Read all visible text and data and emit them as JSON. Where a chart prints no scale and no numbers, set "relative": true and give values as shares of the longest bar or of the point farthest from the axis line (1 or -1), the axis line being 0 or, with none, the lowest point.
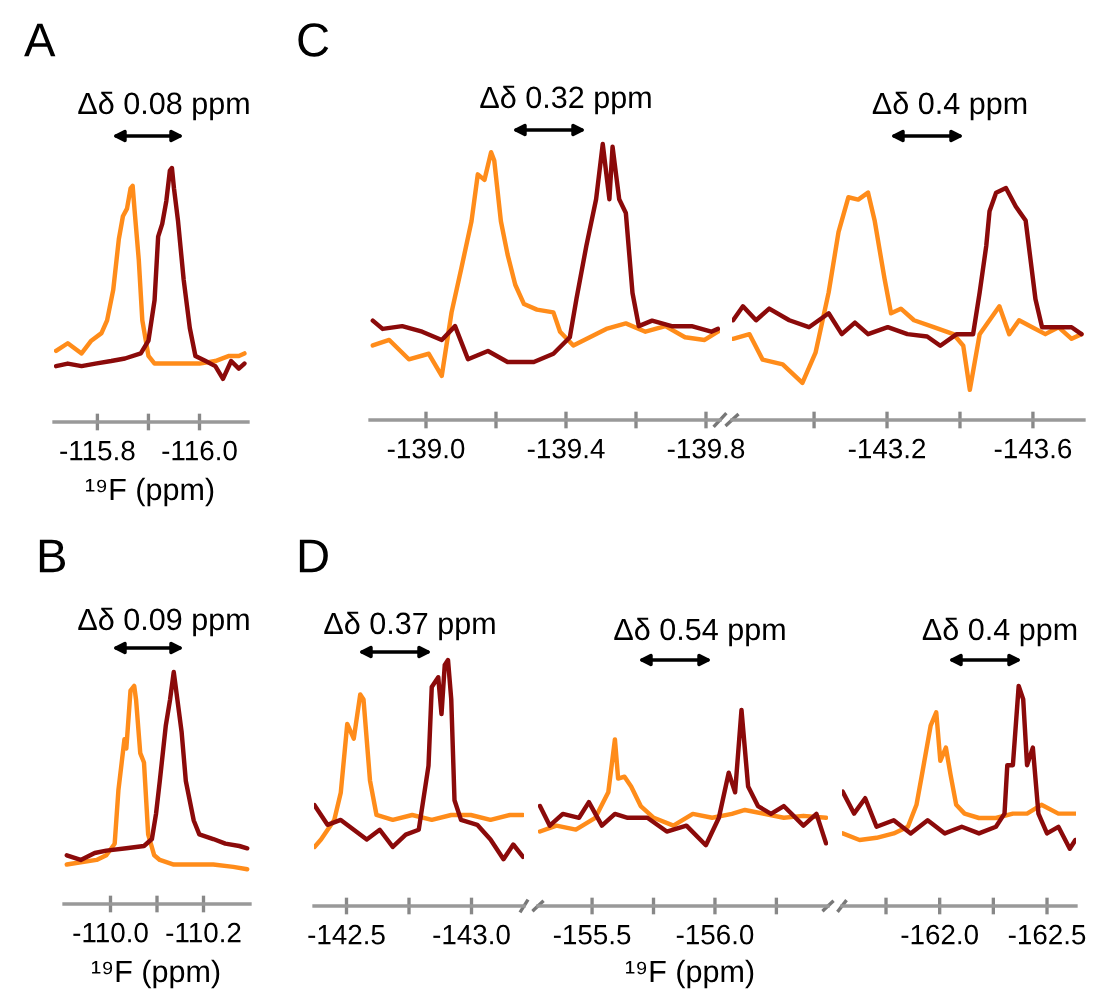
{
  "chart_data": [
    {
      "type": "line",
      "title": "A",
      "xlabel": "¹⁹F (ppm)",
      "annotations": [
        "Δδ 0.08 ppm"
      ],
      "relative": true,
      "tick_labels": "x",
      "xlim": [
        -115.715,
        -116.095
      ],
      "xticks": [
        -115.8,
        {
          "value": -115.9,
          "label": null
        },
        {
          "value": -116.0,
          "label": "-116.0"
        }
      ],
      "series": [
        {
          "color": "#ff8c1a",
          "x": [
            -115.719,
            -115.742,
            -115.769,
            -115.788,
            -115.808,
            -115.819,
            -115.831,
            -115.842,
            -115.85,
            -115.858,
            -115.865,
            -115.869,
            -115.873,
            -115.881,
            -115.888,
            -115.9,
            -115.912,
            -115.931,
            -115.954,
            -115.981,
            -116.0,
            -116.031,
            -116.058,
            -116.077,
            -116.088
          ],
          "values": [
            0.28,
            0.31,
            0.27,
            0.32,
            0.35,
            0.4,
            0.52,
            0.72,
            0.81,
            0.84,
            0.92,
            0.93,
            0.83,
            0.64,
            0.4,
            0.26,
            0.23,
            0.23,
            0.23,
            0.23,
            0.23,
            0.24,
            0.26,
            0.26,
            0.27
          ]
        },
        {
          "color": "#8b0a0a",
          "x": [
            -115.719,
            -115.742,
            -115.769,
            -115.796,
            -115.827,
            -115.854,
            -115.885,
            -115.9,
            -115.912,
            -115.919,
            -115.927,
            -115.935,
            -115.942,
            -115.946,
            -115.95,
            -115.958,
            -115.969,
            -115.981,
            -115.992,
            -116.012,
            -116.031,
            -116.046,
            -116.062,
            -116.077,
            -116.088
          ],
          "values": [
            0.22,
            0.23,
            0.22,
            0.23,
            0.24,
            0.25,
            0.27,
            0.32,
            0.48,
            0.73,
            0.78,
            0.87,
            0.99,
            1,
            0.92,
            0.79,
            0.56,
            0.37,
            0.26,
            0.24,
            0.22,
            0.17,
            0.24,
            0.21,
            0.23
          ]
        }
      ]
    },
    {
      "type": "line",
      "title": "C",
      "annotations": [
        "Δδ 0.32 ppm"
      ],
      "relative": true,
      "tick_labels": "x",
      "xlim": [
        -138.84,
        -139.84
      ],
      "xticks": [
        {
          "value": -139.0,
          "label": "-139.0"
        },
        {
          "value": -139.2,
          "label": null
        },
        -139.4,
        {
          "value": -139.6,
          "label": null
        },
        -139.8
      ],
      "series": [
        {
          "color": "#ff8c1a",
          "x": [
            -138.848,
            -138.895,
            -138.951,
            -139.008,
            -139.045,
            -139.073,
            -139.101,
            -139.13,
            -139.148,
            -139.167,
            -139.186,
            -139.195,
            -139.214,
            -139.233,
            -139.255,
            -139.28,
            -139.317,
            -139.364,
            -139.383,
            -139.421,
            -139.468,
            -139.515,
            -139.571,
            -139.627,
            -139.684,
            -139.74,
            -139.796,
            -139.834
          ],
          "values": [
            0.27,
            0.29,
            0.22,
            0.24,
            0.16,
            0.39,
            0.55,
            0.72,
            0.89,
            0.87,
            0.97,
            0.94,
            0.72,
            0.6,
            0.49,
            0.42,
            0.4,
            0.39,
            0.32,
            0.27,
            0.3,
            0.33,
            0.35,
            0.32,
            0.34,
            0.3,
            0.29,
            0.32
          ]
        },
        {
          "color": "#8b0a0a",
          "x": [
            -138.848,
            -138.876,
            -138.932,
            -138.989,
            -139.045,
            -139.083,
            -139.12,
            -139.177,
            -139.233,
            -139.308,
            -139.364,
            -139.411,
            -139.43,
            -139.458,
            -139.486,
            -139.505,
            -139.524,
            -139.533,
            -139.552,
            -139.571,
            -139.59,
            -139.608,
            -139.646,
            -139.702,
            -139.759,
            -139.815,
            -139.834
          ],
          "values": [
            0.36,
            0.33,
            0.34,
            0.32,
            0.29,
            0.34,
            0.22,
            0.25,
            0.21,
            0.21,
            0.24,
            0.3,
            0.44,
            0.63,
            0.8,
            1,
            0.8,
            0.99,
            0.8,
            0.75,
            0.46,
            0.34,
            0.36,
            0.34,
            0.34,
            0.32,
            0.33
          ]
        }
      ]
    },
    {
      "type": "line",
      "annotations": [
        "Δδ 0.4 ppm"
      ],
      "relative": true,
      "tick_labels": "x",
      "xlim": [
        -142.775,
        -143.74
      ],
      "xticks": [
        {
          "value": -143.0,
          "label": null
        },
        -143.2,
        {
          "value": -143.4,
          "label": null
        },
        -143.6
      ],
      "series": [
        {
          "color": "#ff8c1a",
          "x": [
            -142.778,
            -142.823,
            -142.859,
            -142.914,
            -142.968,
            -143.004,
            -143.04,
            -143.067,
            -143.094,
            -143.121,
            -143.148,
            -143.166,
            -143.193,
            -143.211,
            -143.238,
            -143.274,
            -143.328,
            -143.382,
            -143.409,
            -143.427,
            -143.454,
            -143.481,
            -143.508,
            -143.535,
            -143.562,
            -143.598,
            -143.634,
            -143.67,
            -143.706,
            -143.733
          ],
          "values": [
            0.35,
            0.37,
            0.26,
            0.24,
            0.16,
            0.29,
            0.55,
            0.81,
            0.96,
            0.95,
            0.98,
            0.86,
            0.61,
            0.46,
            0.48,
            0.43,
            0.4,
            0.37,
            0.32,
            0.13,
            0.37,
            0.43,
            0.49,
            0.37,
            0.43,
            0.4,
            0.37,
            0.4,
            0.35,
            0.37
          ]
        },
        {
          "color": "#8b0a0a",
          "x": [
            -142.778,
            -142.805,
            -142.841,
            -142.877,
            -142.932,
            -142.986,
            -143.04,
            -143.076,
            -143.112,
            -143.148,
            -143.202,
            -143.256,
            -143.31,
            -143.346,
            -143.391,
            -143.436,
            -143.454,
            -143.472,
            -143.481,
            -143.499,
            -143.526,
            -143.553,
            -143.58,
            -143.607,
            -143.625,
            -143.661,
            -143.706,
            -143.733
          ],
          "values": [
            0.43,
            0.49,
            0.43,
            0.48,
            0.43,
            0.4,
            0.46,
            0.37,
            0.42,
            0.37,
            0.4,
            0.37,
            0.36,
            0.32,
            0.37,
            0.37,
            0.55,
            0.75,
            0.9,
            0.98,
            1,
            0.92,
            0.86,
            0.52,
            0.4,
            0.4,
            0.4,
            0.37
          ]
        }
      ]
    },
    {
      "type": "line",
      "title": "B",
      "xlabel": "¹⁹F (ppm)",
      "annotations": [
        "Δδ 0.09 ppm"
      ],
      "relative": true,
      "tick_labels": "x",
      "xlim": [
        -109.9,
        -110.3
      ],
      "xticks": [
        {
          "value": -110.0,
          "label": "-110.0"
        },
        {
          "value": -110.1,
          "label": null
        },
        -110.2
      ],
      "series": [
        {
          "color": "#ff8c1a",
          "x": [
            -109.906,
            -109.936,
            -109.97,
            -109.991,
            -110.009,
            -110.017,
            -110.03,
            -110.034,
            -110.043,
            -110.051,
            -110.055,
            -110.064,
            -110.072,
            -110.081,
            -110.094,
            -110.106,
            -110.136,
            -110.179,
            -110.221,
            -110.264,
            -110.294
          ],
          "values": [
            0.17,
            0.18,
            0.19,
            0.21,
            0.26,
            0.49,
            0.71,
            0.67,
            0.92,
            0.94,
            0.88,
            0.65,
            0.61,
            0.3,
            0.21,
            0.19,
            0.17,
            0.17,
            0.17,
            0.16,
            0.15
          ]
        },
        {
          "color": "#8b0a0a",
          "x": [
            -109.906,
            -109.936,
            -109.966,
            -109.991,
            -110.034,
            -110.072,
            -110.089,
            -110.098,
            -110.106,
            -110.119,
            -110.128,
            -110.136,
            -110.14,
            -110.153,
            -110.162,
            -110.179,
            -110.191,
            -110.221,
            -110.247,
            -110.277,
            -110.294
          ],
          "values": [
            0.21,
            0.19,
            0.22,
            0.23,
            0.24,
            0.25,
            0.28,
            0.39,
            0.53,
            0.77,
            0.88,
            1,
            0.94,
            0.74,
            0.53,
            0.36,
            0.3,
            0.28,
            0.26,
            0.25,
            0.24
          ]
        }
      ]
    },
    {
      "type": "line",
      "title": "D",
      "annotations": [
        "Δδ 0.37 ppm"
      ],
      "relative": true,
      "tick_labels": "x",
      "xlim": [
        -142.37,
        -143.21
      ],
      "xticks": [
        -142.5,
        {
          "value": -142.75,
          "label": null
        },
        {
          "value": -143.0,
          "label": "-143.0"
        }
      ],
      "series": [
        {
          "color": "#ff8c1a",
          "x": [
            -142.372,
            -142.398,
            -142.451,
            -142.477,
            -142.503,
            -142.529,
            -142.555,
            -142.568,
            -142.594,
            -142.62,
            -142.685,
            -142.763,
            -142.841,
            -142.919,
            -142.997,
            -143.076,
            -143.154,
            -143.206
          ],
          "values": [
            0.24,
            0.27,
            0.35,
            0.46,
            0.74,
            0.68,
            0.86,
            0.84,
            0.51,
            0.37,
            0.35,
            0.37,
            0.35,
            0.37,
            0.37,
            0.35,
            0.37,
            0.37
          ]
        },
        {
          "color": "#8b0a0a",
          "x": [
            -142.372,
            -142.424,
            -142.477,
            -142.529,
            -142.581,
            -142.633,
            -142.685,
            -142.737,
            -142.789,
            -142.828,
            -142.841,
            -142.867,
            -142.88,
            -142.893,
            -142.906,
            -142.919,
            -142.932,
            -142.958,
            -143.023,
            -143.076,
            -143.128,
            -143.167,
            -143.206
          ],
          "values": [
            0.41,
            0.33,
            0.35,
            0.31,
            0.27,
            0.31,
            0.24,
            0.29,
            0.31,
            0.57,
            0.89,
            0.93,
            0.78,
            0.98,
            1,
            0.84,
            0.43,
            0.35,
            0.33,
            0.27,
            0.19,
            0.25,
            0.2
          ]
        }
      ]
    },
    {
      "type": "line",
      "xlabel": "¹⁹F (ppm)",
      "annotations": [
        "Δδ 0.54 ppm"
      ],
      "relative": true,
      "tick_labels": "x",
      "xlim": [
        -155.28,
        -156.46
      ],
      "xticks": [
        -155.5,
        {
          "value": -155.75,
          "label": null
        },
        {
          "value": -156.0,
          "label": "-156.0"
        },
        {
          "value": -156.25,
          "label": null
        }
      ],
      "series": [
        {
          "color": "#ff8c1a",
          "x": [
            -155.288,
            -155.355,
            -155.434,
            -155.513,
            -155.566,
            -155.593,
            -155.606,
            -155.632,
            -155.659,
            -155.698,
            -155.751,
            -155.831,
            -155.91,
            -155.989,
            -156.069,
            -156.122,
            -156.201,
            -156.28,
            -156.36,
            -156.452
          ],
          "values": [
            0.38,
            0.41,
            0.39,
            0.45,
            0.58,
            0.85,
            0.65,
            0.66,
            0.61,
            0.51,
            0.45,
            0.41,
            0.47,
            0.45,
            0.47,
            0.49,
            0.47,
            0.45,
            0.46,
            0.45
          ]
        },
        {
          "color": "#8b0a0a",
          "x": [
            -155.288,
            -155.328,
            -155.381,
            -155.447,
            -155.487,
            -155.54,
            -155.593,
            -155.645,
            -155.725,
            -155.804,
            -155.884,
            -155.963,
            -156.016,
            -156.056,
            -156.082,
            -156.108,
            -156.135,
            -156.175,
            -156.228,
            -156.28,
            -156.36,
            -156.413,
            -156.452
          ],
          "values": [
            0.51,
            0.41,
            0.47,
            0.45,
            0.53,
            0.41,
            0.47,
            0.45,
            0.45,
            0.38,
            0.41,
            0.31,
            0.45,
            0.68,
            0.58,
            1,
            0.61,
            0.51,
            0.47,
            0.51,
            0.41,
            0.47,
            0.32
          ]
        }
      ]
    },
    {
      "type": "line",
      "annotations": [
        "Δδ 0.4 ppm"
      ],
      "relative": true,
      "tick_labels": "x",
      "xlim": [
        -161.545,
        -162.635
      ],
      "xticks": [
        {
          "value": -161.75,
          "label": null
        },
        {
          "value": -162.0,
          "label": "-162.0"
        },
        {
          "value": -162.25,
          "label": null
        },
        -162.5
      ],
      "series": [
        {
          "color": "#ff8c1a",
          "x": [
            -161.548,
            -161.627,
            -161.706,
            -161.786,
            -161.852,
            -161.892,
            -161.918,
            -161.958,
            -161.984,
            -162.003,
            -162.029,
            -162.05,
            -162.077,
            -162.116,
            -162.183,
            -162.262,
            -162.341,
            -162.407,
            -162.474,
            -162.553,
            -162.632
          ],
          "values": [
            0.33,
            0.3,
            0.31,
            0.33,
            0.36,
            0.46,
            0.6,
            0.82,
            0.88,
            0.66,
            0.72,
            0.6,
            0.46,
            0.42,
            0.4,
            0.4,
            0.42,
            0.42,
            0.46,
            0.42,
            0.42
          ]
        },
        {
          "color": "#8b0a0a",
          "x": [
            -161.548,
            -161.601,
            -161.653,
            -161.706,
            -161.786,
            -161.865,
            -161.944,
            -162.024,
            -162.103,
            -162.183,
            -162.262,
            -162.302,
            -162.315,
            -162.341,
            -162.368,
            -162.389,
            -162.407,
            -162.434,
            -162.46,
            -162.5,
            -162.553,
            -162.606,
            -162.632
          ],
          "values": [
            0.52,
            0.42,
            0.49,
            0.36,
            0.39,
            0.33,
            0.39,
            0.33,
            0.36,
            0.33,
            0.36,
            0.42,
            0.64,
            0.64,
            1,
            0.94,
            0.64,
            0.72,
            0.42,
            0.33,
            0.36,
            0.26,
            0.3
          ]
        }
      ]
    }
  ]
}
